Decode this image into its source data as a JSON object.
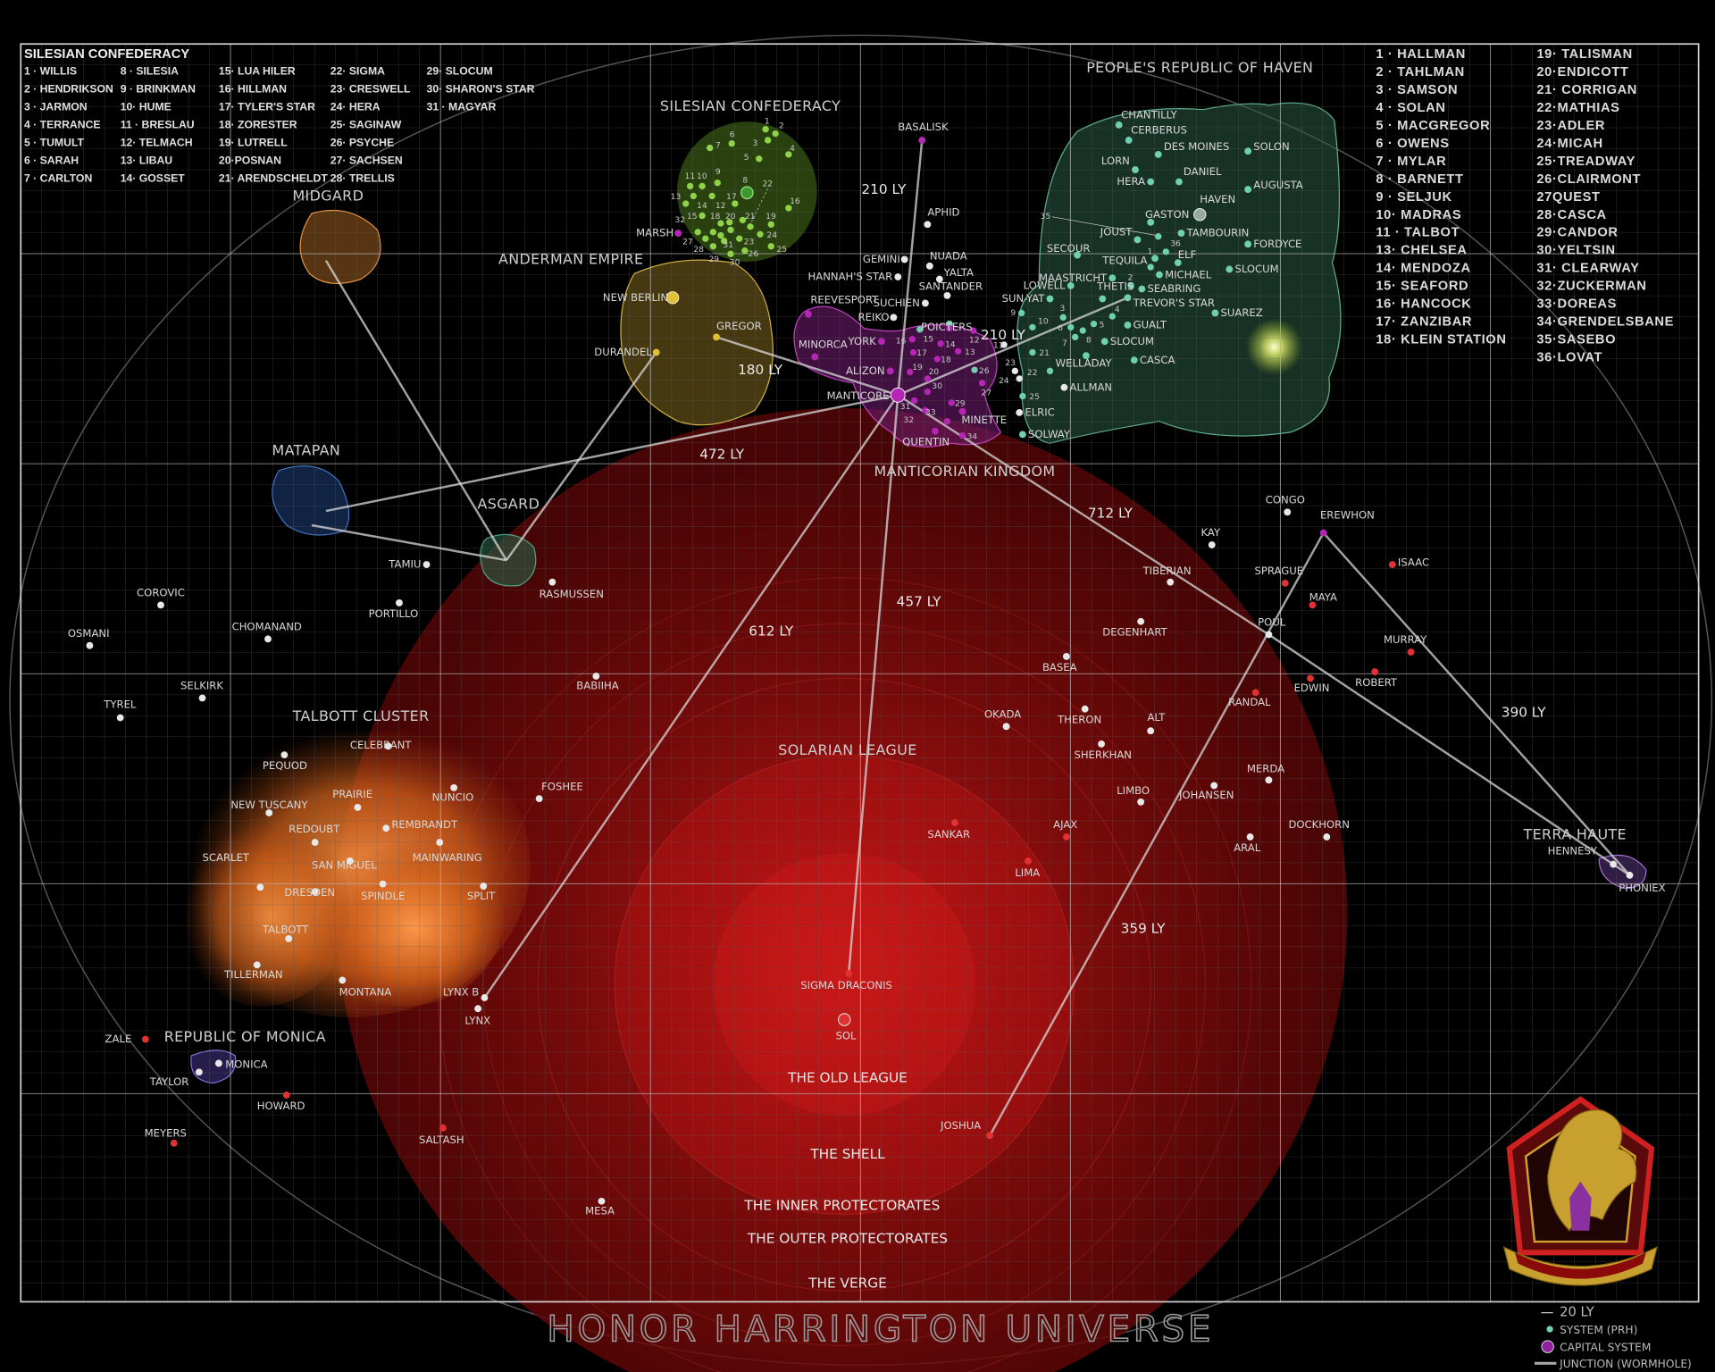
{
  "title": "HONOR HARRINGTON UNIVERSE",
  "colors": {
    "background": "#000000",
    "grid": "#9a9a9a",
    "independent": "#e8e8e8",
    "solarian": "#e03232",
    "silesian": "#8fd24a",
    "haven": "#6fd0b0",
    "manticore": "#b526b5",
    "anderman": "#e0c030",
    "solarian_sphere": "#a01010",
    "talbott_cloud": "#e07a20"
  },
  "silesian_legend": {
    "title": "SILESIAN CONFEDERACY",
    "entries": [
      "1 · WILLIS",
      "2 · HENDRIKSON",
      "3 · JARMON",
      "4 · TERRANCE",
      "5 · TUMULT",
      "6 · SARAH",
      "7 · CARLTON",
      "8 · SILESIA",
      "9 · BRINKMAN",
      "10· HUME",
      "11 · BRESLAU",
      "12· TELMACH",
      "13· LIBAU",
      "14· GOSSET",
      "15· LUA HILER",
      "16· HILLMAN",
      "17· TYLER'S STAR",
      "18· ZORESTER",
      "19· LUTRELL",
      "20·POSNAN",
      "21· ARENDSCHELDT",
      "22· SIGMA",
      "23· CRESWELL",
      "24· HERA",
      "25· SAGINAW",
      "26· PSYCHE",
      "27· SACHSEN",
      "28· TRELLIS",
      "29· SLOCUM",
      "30· SHARON'S STAR",
      "31 · MAGYAR"
    ]
  },
  "manticore_legend": {
    "entries": [
      "1 · HALLMAN",
      "2 · TAHLMAN",
      "3 · SAMSON",
      "4 · SOLAN",
      "5 · MACGREGOR",
      "6 · OWENS",
      "7 · MYLAR",
      "8 · BARNETT",
      "9 · SELJUK",
      "10· MADRAS",
      "11 · TALBOT",
      "13· CHELSEA",
      "14· MENDOZA",
      "15· SEAFORD",
      "16· HANCOCK",
      "17· ZANZIBAR",
      "18· KLEIN STATION",
      "19· TALISMAN",
      "20·ENDICOTT",
      "21· CORRIGAN",
      "22·MATHIAS",
      "23·ADLER",
      "24·MICAH",
      "25·TREADWAY",
      "26·CLAIRMONT",
      "27QUEST",
      "28·CASCA",
      "29·CANDOR",
      "30·YELTSIN",
      "31· CLEARWAY",
      "32·ZUCKERMAN",
      "33·DOREAS",
      "34·GRENDELSBANE",
      "35·SASEBO",
      "36·LOVAT"
    ]
  },
  "key": {
    "scale": "20 LY",
    "system": "SYSTEM (PRH)",
    "capital": "CAPITAL SYSTEM",
    "junction": "JUNCTION (WORMHOLE)"
  },
  "regions": [
    "PEOPLE'S REPUBLIC OF HAVEN",
    "SILESIAN CONFEDERACY",
    "ANDERMAN EMPIRE",
    "MANTICORIAN KINGDOM",
    "SOLARIAN LEAGUE",
    "TALBOTT CLUSTER",
    "REPUBLIC OF MONICA",
    "MIDGARD",
    "MATAPAN",
    "ASGARD",
    "TERRA HAUTE"
  ],
  "zones": [
    "THE OLD LEAGUE",
    "THE SHELL",
    "THE INNER PROTECTORATES",
    "THE OUTER PROTECTORATES",
    "THE VERGE"
  ],
  "distances": [
    "210 LY",
    "210 LY",
    "180 LY",
    "472 LY",
    "712 LY",
    "457 LY",
    "612 LY",
    "390 LY",
    "359 LY"
  ],
  "systems": [
    {
      "label": "BASALISK",
      "type": "manticore"
    },
    {
      "label": "APHID",
      "type": "independent"
    },
    {
      "label": "GEMINI",
      "type": "independent"
    },
    {
      "label": "NUADA",
      "type": "independent"
    },
    {
      "label": "HANNAH'S STAR",
      "type": "independent"
    },
    {
      "label": "YALTA",
      "type": "independent"
    },
    {
      "label": "SANTANDER",
      "type": "independent"
    },
    {
      "label": "SUCHIEN",
      "type": "independent"
    },
    {
      "label": "REIKO",
      "type": "independent"
    },
    {
      "label": "POICTERS",
      "type": "haven"
    },
    {
      "label": "REEVESPORT",
      "type": "manticore"
    },
    {
      "label": "MINORCA",
      "type": "manticore"
    },
    {
      "label": "YORK",
      "type": "manticore"
    },
    {
      "label": "ALIZON",
      "type": "manticore"
    },
    {
      "label": "MANTICORE",
      "type": "capital"
    },
    {
      "label": "MINETTE",
      "type": "manticore"
    },
    {
      "label": "QUENTIN",
      "type": "manticore"
    },
    {
      "label": "NEW BERLIN",
      "type": "anderman-capital"
    },
    {
      "label": "GREGOR",
      "type": "anderman"
    },
    {
      "label": "DURANDEL",
      "type": "anderman"
    },
    {
      "label": "MARSH",
      "type": "manticore"
    },
    {
      "label": "CHANTILLY",
      "type": "haven"
    },
    {
      "label": "CERBERUS",
      "type": "haven"
    },
    {
      "label": "DES MOINES",
      "type": "haven"
    },
    {
      "label": "SOLON",
      "type": "haven"
    },
    {
      "label": "LORN",
      "type": "haven"
    },
    {
      "label": "HERA",
      "type": "haven"
    },
    {
      "label": "DANIEL",
      "type": "haven"
    },
    {
      "label": "AUGUSTA",
      "type": "haven"
    },
    {
      "label": "HAVEN",
      "type": "haven-capital"
    },
    {
      "label": "GASTON",
      "type": "haven"
    },
    {
      "label": "JOUST",
      "type": "haven"
    },
    {
      "label": "TAMBOURIN",
      "type": "haven"
    },
    {
      "label": "FORDYCE",
      "type": "haven"
    },
    {
      "label": "SECOUR",
      "type": "haven"
    },
    {
      "label": "TEQUILA",
      "type": "haven"
    },
    {
      "label": "ELF",
      "type": "haven"
    },
    {
      "label": "MICHAEL",
      "type": "haven"
    },
    {
      "label": "SLOCUM",
      "type": "haven"
    },
    {
      "label": "MAASTRICHT",
      "type": "haven"
    },
    {
      "label": "LOWELL",
      "type": "haven"
    },
    {
      "label": "SEABRING",
      "type": "haven"
    },
    {
      "label": "SUN-YAT",
      "type": "haven"
    },
    {
      "label": "THETIS",
      "type": "haven"
    },
    {
      "label": "TREVOR'S STAR",
      "type": "haven"
    },
    {
      "label": "SUAREZ",
      "type": "haven"
    },
    {
      "label": "GUALT",
      "type": "haven"
    },
    {
      "label": "SLOCUM",
      "type": "haven"
    },
    {
      "label": "WELLADAY",
      "type": "haven"
    },
    {
      "label": "CASCA",
      "type": "haven"
    },
    {
      "label": "ALLMAN",
      "type": "independent"
    },
    {
      "label": "ELRIC",
      "type": "independent"
    },
    {
      "label": "SOLWAY",
      "type": "haven"
    },
    {
      "label": "TAMIU",
      "type": "independent"
    },
    {
      "label": "RASMUSSEN",
      "type": "independent"
    },
    {
      "label": "PORTILLO",
      "type": "independent"
    },
    {
      "label": "COROVIC",
      "type": "independent"
    },
    {
      "label": "CHOMANAND",
      "type": "independent"
    },
    {
      "label": "OSMANI",
      "type": "independent"
    },
    {
      "label": "TYREL",
      "type": "independent"
    },
    {
      "label": "SELKIRK",
      "type": "independent"
    },
    {
      "label": "BABIIHA",
      "type": "independent"
    },
    {
      "label": "FOSHEE",
      "type": "independent"
    },
    {
      "label": "CELEBRANT",
      "type": "independent"
    },
    {
      "label": "PEQUOD",
      "type": "independent"
    },
    {
      "label": "NEW TUSCANY",
      "type": "independent"
    },
    {
      "label": "PRAIRIE",
      "type": "independent"
    },
    {
      "label": "NUNCIO",
      "type": "independent"
    },
    {
      "label": "REDOUBT",
      "type": "independent"
    },
    {
      "label": "REMBRANDT",
      "type": "independent"
    },
    {
      "label": "SCARLET",
      "type": "independent"
    },
    {
      "label": "SAN MIGUEL",
      "type": "independent"
    },
    {
      "label": "MAINWARING",
      "type": "independent"
    },
    {
      "label": "DRESDEN",
      "type": "independent"
    },
    {
      "label": "SPINDLE",
      "type": "independent"
    },
    {
      "label": "SPLIT",
      "type": "independent"
    },
    {
      "label": "TALBOTT",
      "type": "independent"
    },
    {
      "label": "TILLERMAN",
      "type": "independent"
    },
    {
      "label": "MONTANA",
      "type": "independent"
    },
    {
      "label": "LYNX B",
      "type": "independent"
    },
    {
      "label": "LYNX",
      "type": "independent"
    },
    {
      "label": "ZALE",
      "type": "solarian"
    },
    {
      "label": "MONICA",
      "type": "independent"
    },
    {
      "label": "TAYLOR",
      "type": "independent"
    },
    {
      "label": "HOWARD",
      "type": "solarian"
    },
    {
      "label": "MEYERS",
      "type": "solarian"
    },
    {
      "label": "SALTASH",
      "type": "solarian"
    },
    {
      "label": "MESA",
      "type": "independent"
    },
    {
      "label": "SIGMA DRACONIS",
      "type": "solarian"
    },
    {
      "label": "SOL",
      "type": "solarian-capital"
    },
    {
      "label": "OKADA",
      "type": "independent"
    },
    {
      "label": "THERON",
      "type": "independent"
    },
    {
      "label": "ALT",
      "type": "independent"
    },
    {
      "label": "BASEA",
      "type": "independent"
    },
    {
      "label": "DEGENHART",
      "type": "independent"
    },
    {
      "label": "TIBERIAN",
      "type": "independent"
    },
    {
      "label": "KAY",
      "type": "independent"
    },
    {
      "label": "CONGO",
      "type": "independent"
    },
    {
      "label": "EREWHON",
      "type": "manticore"
    },
    {
      "label": "ISAAC",
      "type": "solarian"
    },
    {
      "label": "SPRAGUE",
      "type": "solarian"
    },
    {
      "label": "MAYA",
      "type": "solarian"
    },
    {
      "label": "POUL",
      "type": "independent"
    },
    {
      "label": "MURRAY",
      "type": "solarian"
    },
    {
      "label": "ROBERT",
      "type": "solarian"
    },
    {
      "label": "EDWIN",
      "type": "solarian"
    },
    {
      "label": "RANDAL",
      "type": "solarian"
    },
    {
      "label": "SHERKHAN",
      "type": "independent"
    },
    {
      "label": "LIMBO",
      "type": "independent"
    },
    {
      "label": "JOHANSEN",
      "type": "independent"
    },
    {
      "label": "MERDA",
      "type": "independent"
    },
    {
      "label": "ARAL",
      "type": "independent"
    },
    {
      "label": "DOCKHORN",
      "type": "independent"
    },
    {
      "label": "SANKAR",
      "type": "solarian"
    },
    {
      "label": "AJAX",
      "type": "solarian"
    },
    {
      "label": "LIMA",
      "type": "solarian"
    },
    {
      "label": "JOSHUA",
      "type": "solarian"
    },
    {
      "label": "HENNESY",
      "type": "independent"
    },
    {
      "label": "PHONIEX",
      "type": "independent"
    }
  ],
  "numbered_systems": {
    "silesian": [
      "1",
      "2",
      "3",
      "4",
      "5",
      "6",
      "7",
      "8",
      "9",
      "10",
      "11",
      "13",
      "14",
      "12",
      "17",
      "16",
      "15",
      "18",
      "20",
      "21",
      "19",
      "22",
      "",
      "24",
      "32",
      "27",
      "",
      "28",
      "23",
      "29",
      "25",
      "26",
      "30",
      "31"
    ],
    "manticore": [
      "",
      "12",
      "16",
      "14",
      "13",
      "17",
      "18",
      "19",
      "20",
      "30",
      "27",
      "31",
      "29",
      "32",
      "33",
      "34"
    ],
    "haven_and_independent": [
      "15",
      "11",
      "26",
      "23",
      "24",
      "9",
      "35",
      "36",
      "2",
      "3",
      "4",
      "5",
      "6",
      "8",
      "7",
      "10",
      "21",
      "22",
      "25",
      "1"
    ]
  }
}
